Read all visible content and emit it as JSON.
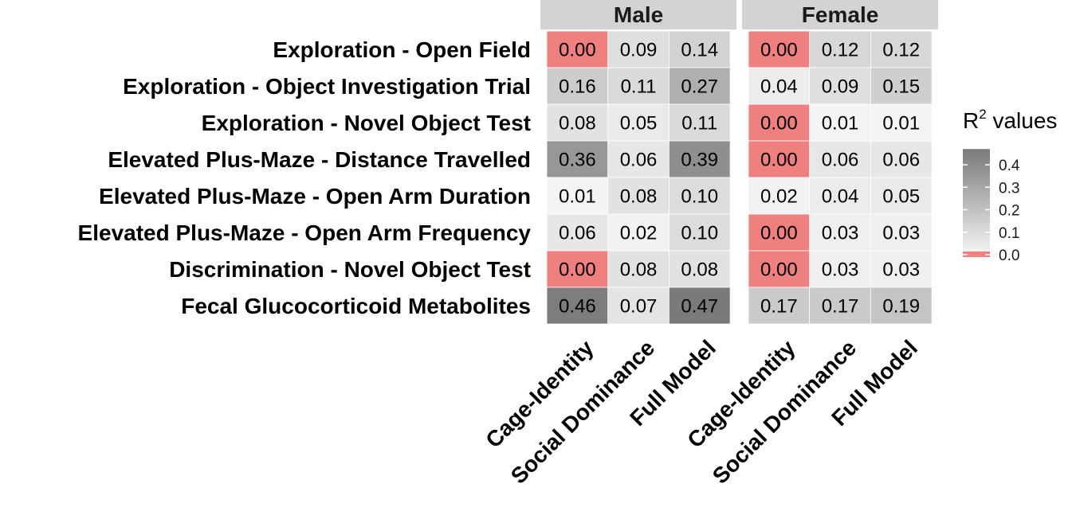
{
  "chart_data": {
    "type": "heatmap",
    "rows": [
      "Exploration - Open Field",
      "Exploration - Object Investigation Trial",
      "Exploration - Novel Object Test",
      "Elevated Plus-Maze - Distance Travelled",
      "Elevated Plus-Maze - Open Arm Duration",
      "Elevated Plus-Maze - Open Arm Frequency",
      "Discrimination - Novel Object Test",
      "Fecal Glucocorticoid Metabolites"
    ],
    "columns": [
      "Cage-Identity",
      "Social Dominance",
      "Full Model"
    ],
    "facets": [
      {
        "name": "Male",
        "values": [
          [
            0.0,
            0.09,
            0.14
          ],
          [
            0.16,
            0.11,
            0.27
          ],
          [
            0.08,
            0.05,
            0.11
          ],
          [
            0.36,
            0.06,
            0.39
          ],
          [
            0.01,
            0.08,
            0.1
          ],
          [
            0.06,
            0.02,
            0.1
          ],
          [
            0.0,
            0.08,
            0.08
          ],
          [
            0.46,
            0.07,
            0.47
          ]
        ],
        "labels": [
          [
            "0.00",
            "0.09",
            "0.14"
          ],
          [
            "0.16",
            "0.11",
            "0.27"
          ],
          [
            "0.08",
            "0.05",
            "0.11"
          ],
          [
            "0.36",
            "0.06",
            "0.39"
          ],
          [
            "0.01",
            "0.08",
            "0.10"
          ],
          [
            "0.06",
            "0.02",
            "0.10"
          ],
          [
            "0.00",
            "0.08",
            "0.08"
          ],
          [
            "0.46",
            "0.07",
            "0.47"
          ]
        ]
      },
      {
        "name": "Female",
        "values": [
          [
            0.0,
            0.12,
            0.12
          ],
          [
            0.04,
            0.09,
            0.15
          ],
          [
            0.0,
            0.01,
            0.01
          ],
          [
            0.0,
            0.06,
            0.06
          ],
          [
            0.02,
            0.04,
            0.05
          ],
          [
            0.0,
            0.03,
            0.03
          ],
          [
            0.0,
            0.03,
            0.03
          ],
          [
            0.17,
            0.17,
            0.19
          ]
        ],
        "labels": [
          [
            "0.00",
            "0.12",
            "0.12"
          ],
          [
            "0.04",
            "0.09",
            "0.15"
          ],
          [
            "0.00",
            "0.01",
            "0.01"
          ],
          [
            "0.00",
            "0.06",
            "0.06"
          ],
          [
            "0.02",
            "0.04",
            "0.05"
          ],
          [
            "0.00",
            "0.03",
            "0.03"
          ],
          [
            "0.00",
            "0.03",
            "0.03"
          ],
          [
            "0.17",
            "0.17",
            "0.19"
          ]
        ]
      }
    ],
    "legend": {
      "title": "R",
      "title_sup": "2",
      "title_suffix": " values",
      "ticks": [
        0.4,
        0.3,
        0.2,
        0.1,
        0.0
      ],
      "tick_labels": [
        "0.4",
        "0.3",
        "0.2",
        "0.1",
        "0.0"
      ],
      "range": [
        0.0,
        0.47
      ],
      "placement": "right"
    },
    "colors": {
      "zero": "#f08080",
      "low": "#f7f7f7",
      "high": "#7a7a7a",
      "facet_strip": "#d3d3d3"
    }
  }
}
